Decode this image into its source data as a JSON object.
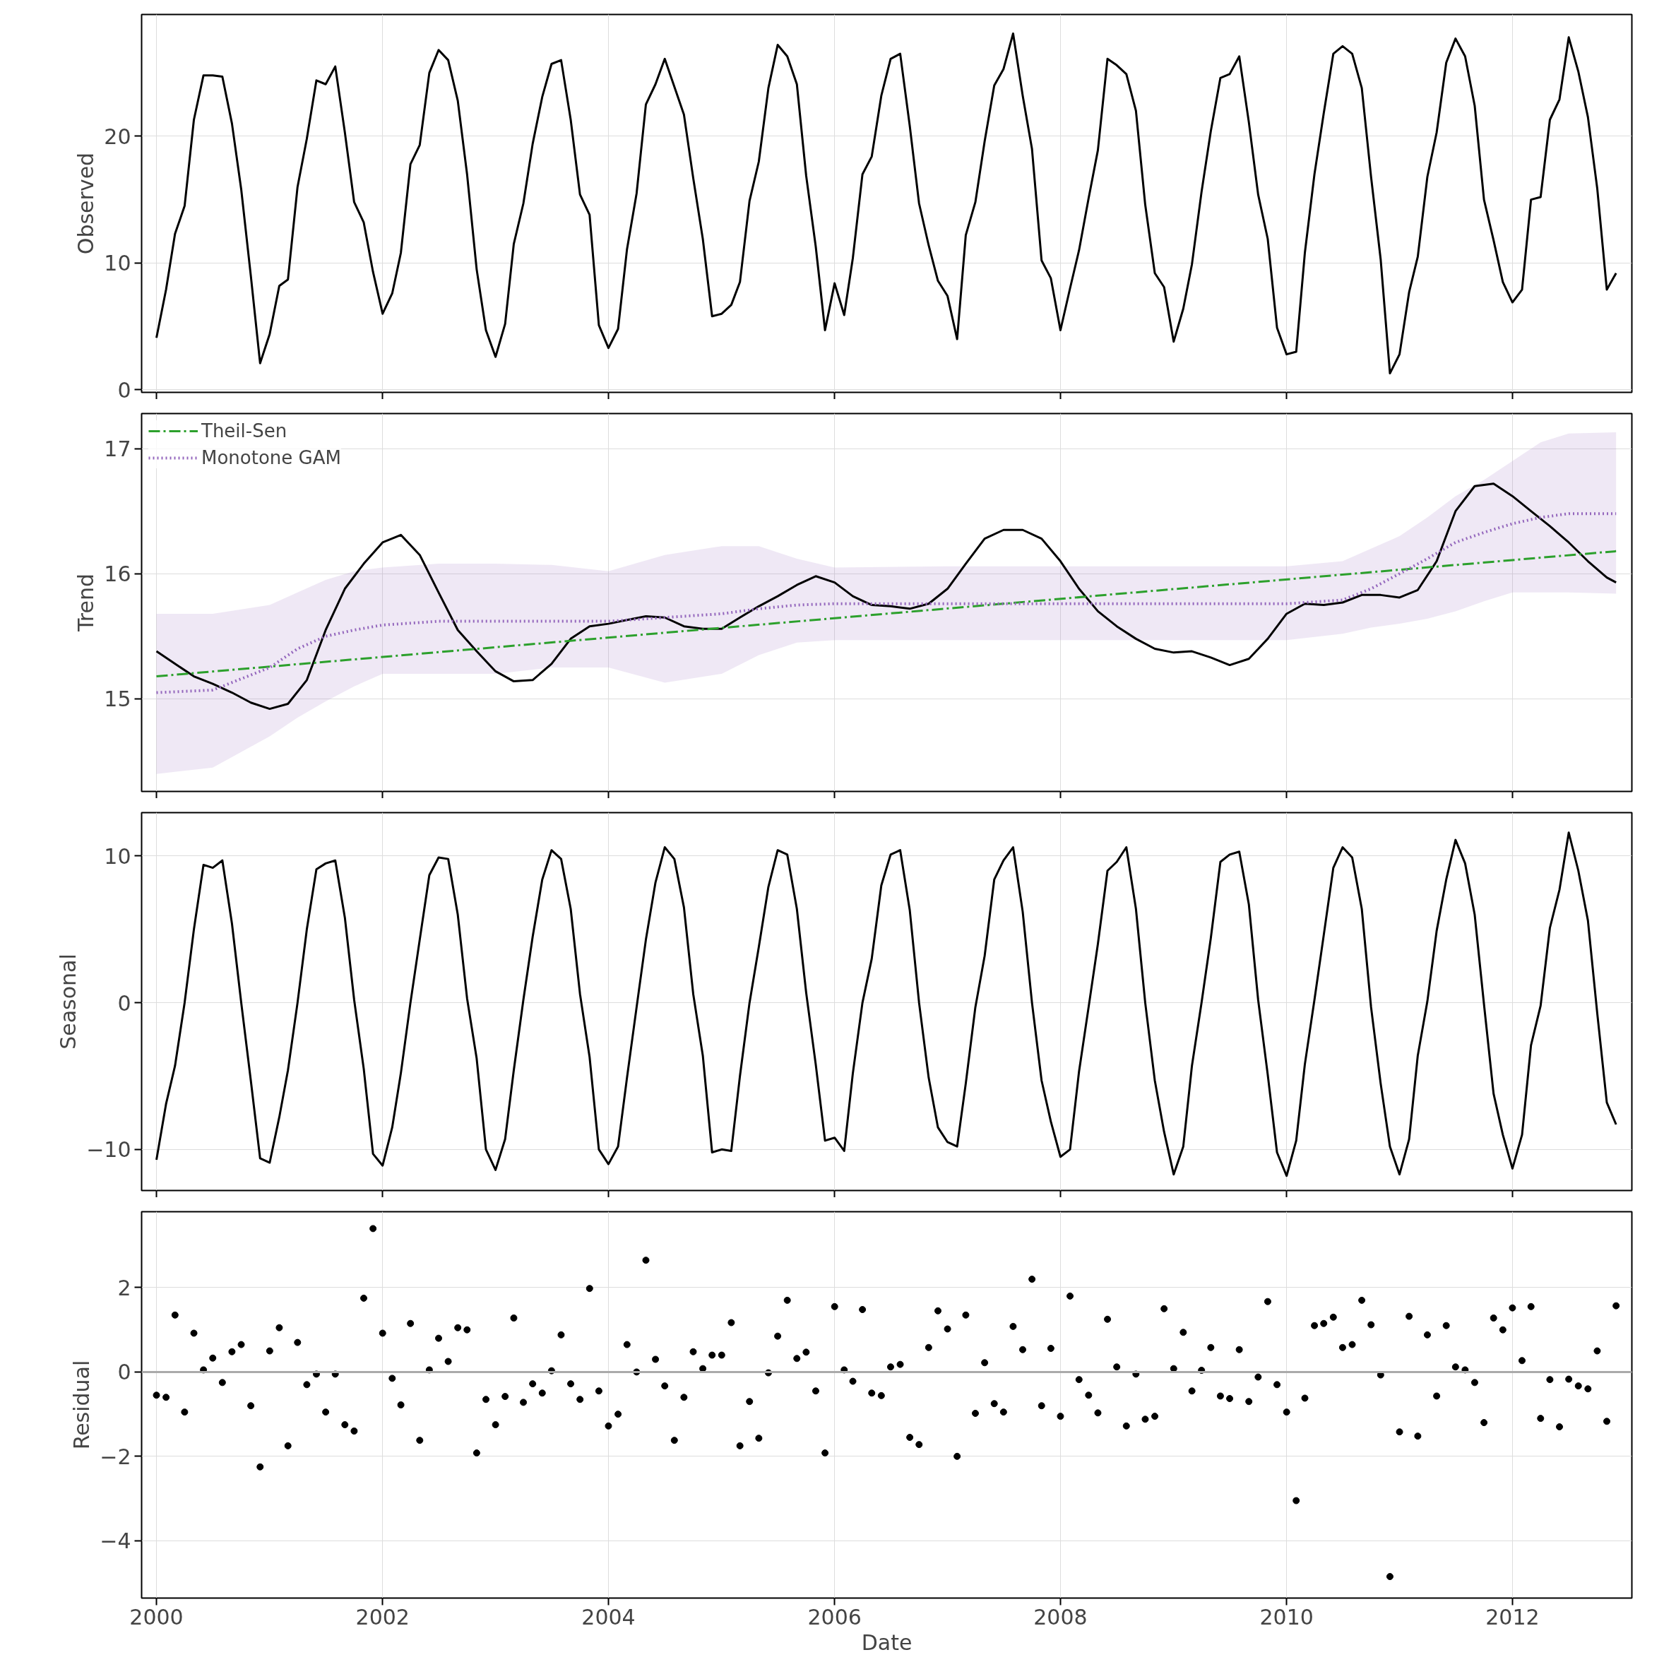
{
  "chart_data": [
    {
      "type": "line",
      "ylabel": "Observed",
      "xlim": [
        "1999-11-14",
        "2013-01-21"
      ],
      "ylim": [
        -0.2,
        29.6
      ],
      "xticks": [
        "2000",
        "2002",
        "2004",
        "2006",
        "2008",
        "2010",
        "2012"
      ],
      "yticks": [
        0,
        10,
        20
      ],
      "grid": true,
      "tick_labels": "y",
      "x": [
        "2000-01",
        "2000-02",
        "2000-03",
        "2000-04",
        "2000-05",
        "2000-06",
        "2000-07",
        "2000-08",
        "2000-09",
        "2000-10",
        "2000-11",
        "2000-12",
        "2001-01",
        "2001-02",
        "2001-03",
        "2001-04",
        "2001-05",
        "2001-06",
        "2001-07",
        "2001-08",
        "2001-09",
        "2001-10",
        "2001-11",
        "2001-12",
        "2002-01",
        "2002-02",
        "2002-03",
        "2002-04",
        "2002-05",
        "2002-06",
        "2002-07",
        "2002-08",
        "2002-09",
        "2002-10",
        "2002-11",
        "2002-12",
        "2003-01",
        "2003-02",
        "2003-03",
        "2003-04",
        "2003-05",
        "2003-06",
        "2003-07",
        "2003-08",
        "2003-09",
        "2003-10",
        "2003-11",
        "2003-12",
        "2004-01",
        "2004-02",
        "2004-03",
        "2004-04",
        "2004-05",
        "2004-06",
        "2004-07",
        "2004-08",
        "2004-09",
        "2004-10",
        "2004-11",
        "2004-12",
        "2005-01",
        "2005-02",
        "2005-03",
        "2005-04",
        "2005-05",
        "2005-06",
        "2005-07",
        "2005-08",
        "2005-09",
        "2005-10",
        "2005-11",
        "2005-12",
        "2006-01",
        "2006-02",
        "2006-03",
        "2006-04",
        "2006-05",
        "2006-06",
        "2006-07",
        "2006-08",
        "2006-09",
        "2006-10",
        "2006-11",
        "2006-12",
        "2007-01",
        "2007-02",
        "2007-03",
        "2007-04",
        "2007-05",
        "2007-06",
        "2007-07",
        "2007-08",
        "2007-09",
        "2007-10",
        "2007-11",
        "2007-12",
        "2008-01",
        "2008-02",
        "2008-03",
        "2008-04",
        "2008-05",
        "2008-06",
        "2008-07",
        "2008-08",
        "2008-09",
        "2008-10",
        "2008-11",
        "2008-12",
        "2009-01",
        "2009-02",
        "2009-03",
        "2009-04",
        "2009-05",
        "2009-06",
        "2009-07",
        "2009-08",
        "2009-09",
        "2009-10",
        "2009-11",
        "2009-12",
        "2010-01",
        "2010-02",
        "2010-03",
        "2010-04",
        "2010-05",
        "2010-06",
        "2010-07",
        "2010-08",
        "2010-09",
        "2010-10",
        "2010-11",
        "2010-12",
        "2011-01",
        "2011-02",
        "2011-03",
        "2011-04",
        "2011-05",
        "2011-06",
        "2011-07",
        "2011-08",
        "2011-09",
        "2011-10",
        "2011-11",
        "2011-12",
        "2012-01",
        "2012-02",
        "2012-03",
        "2012-04",
        "2012-05",
        "2012-06",
        "2012-07",
        "2012-08",
        "2012-09",
        "2012-10",
        "2012-11",
        "2012-12"
      ],
      "series": [
        {
          "color": "#000000",
          "values": [
            4.1,
            7.9,
            12.3,
            14.5,
            21.3,
            24.8,
            24.8,
            24.7,
            21.0,
            15.8,
            9.0,
            2.1,
            4.4,
            8.2,
            8.7,
            16.0,
            19.8,
            24.4,
            24.1,
            25.5,
            20.3,
            14.8,
            13.2,
            9.3,
            6.0,
            7.6,
            10.8,
            17.8,
            19.3,
            25.0,
            26.8,
            26.0,
            22.8,
            17.0,
            9.5,
            4.7,
            2.6,
            5.2,
            11.5,
            14.7,
            19.4,
            23.1,
            25.7,
            26.0,
            21.3,
            15.4,
            13.8,
            5.1,
            3.3,
            4.8,
            11.1,
            15.5,
            22.5,
            24.1,
            26.1,
            23.9,
            21.7,
            16.7,
            11.9,
            5.8,
            6.0,
            6.7,
            8.5,
            14.9,
            18.0,
            23.8,
            27.2,
            26.3,
            24.1,
            16.9,
            11.3,
            4.7,
            8.4,
            5.9,
            10.4,
            17.0,
            18.4,
            23.2,
            26.1,
            26.5,
            20.8,
            14.7,
            11.4,
            8.6,
            7.4,
            4.0,
            12.2,
            14.8,
            19.6,
            24.0,
            25.3,
            28.1,
            23.2,
            19.0,
            10.2,
            8.8,
            4.7,
            8.0,
            11.0,
            15.1,
            18.9,
            26.1,
            25.6,
            24.9,
            22.0,
            14.6,
            9.2,
            8.1,
            3.8,
            6.4,
            9.9,
            15.6,
            20.4,
            24.6,
            24.9,
            26.3,
            21.1,
            15.4,
            11.9,
            4.9,
            2.8,
            3.0,
            10.8,
            17.0,
            21.8,
            26.5,
            27.1,
            26.5,
            23.8,
            16.8,
            10.3,
            1.3,
            2.8,
            7.7,
            10.5,
            16.8,
            20.3,
            25.8,
            27.7,
            26.3,
            22.4,
            15.0,
            11.8,
            8.5,
            6.9,
            7.9,
            15.0,
            15.2,
            21.3,
            22.9,
            27.8,
            25.1,
            21.5,
            15.9,
            7.9,
            9.2
          ]
        }
      ]
    },
    {
      "type": "line",
      "ylabel": "Trend",
      "xlim": [
        "1999-11-14",
        "2013-01-21"
      ],
      "ylim": [
        14.26,
        17.28
      ],
      "xticks": [
        "2000",
        "2002",
        "2004",
        "2006",
        "2008",
        "2010",
        "2012"
      ],
      "yticks": [
        15,
        16,
        17
      ],
      "grid": true,
      "tick_labels": "y",
      "legend": "top left",
      "series": [
        {
          "color": "#000000",
          "x": [
            "2000-01",
            "2000-03",
            "2000-05",
            "2000-07",
            "2000-09",
            "2000-11",
            "2001-01",
            "2001-03",
            "2001-05",
            "2001-07",
            "2001-09",
            "2001-11",
            "2002-01",
            "2002-03",
            "2002-05",
            "2002-07",
            "2002-09",
            "2002-11",
            "2003-01",
            "2003-03",
            "2003-05",
            "2003-07",
            "2003-09",
            "2003-11",
            "2004-01",
            "2004-03",
            "2004-05",
            "2004-07",
            "2004-09",
            "2004-11",
            "2005-01",
            "2005-03",
            "2005-05",
            "2005-07",
            "2005-09",
            "2005-11",
            "2006-01",
            "2006-03",
            "2006-05",
            "2006-07",
            "2006-09",
            "2006-11",
            "2007-01",
            "2007-03",
            "2007-05",
            "2007-07",
            "2007-09",
            "2007-11",
            "2008-01",
            "2008-03",
            "2008-05",
            "2008-07",
            "2008-09",
            "2008-11",
            "2009-01",
            "2009-03",
            "2009-05",
            "2009-07",
            "2009-09",
            "2009-11",
            "2010-01",
            "2010-03",
            "2010-05",
            "2010-07",
            "2010-09",
            "2010-11",
            "2011-01",
            "2011-03",
            "2011-05",
            "2011-07",
            "2011-09",
            "2011-11",
            "2012-01",
            "2012-03",
            "2012-05",
            "2012-07",
            "2012-09",
            "2012-11",
            "2012-12"
          ],
          "values": [
            15.38,
            15.28,
            15.18,
            15.12,
            15.05,
            14.97,
            14.92,
            14.96,
            15.15,
            15.55,
            15.88,
            16.08,
            16.25,
            16.31,
            16.15,
            15.85,
            15.55,
            15.38,
            15.22,
            15.14,
            15.15,
            15.28,
            15.48,
            15.58,
            15.6,
            15.63,
            15.66,
            15.65,
            15.58,
            15.56,
            15.56,
            15.65,
            15.74,
            15.82,
            15.91,
            15.98,
            15.93,
            15.82,
            15.75,
            15.74,
            15.72,
            15.76,
            15.88,
            16.08,
            16.28,
            16.35,
            16.35,
            16.28,
            16.1,
            15.88,
            15.7,
            15.58,
            15.48,
            15.4,
            15.37,
            15.38,
            15.33,
            15.27,
            15.32,
            15.48,
            15.68,
            15.76,
            15.75,
            15.77,
            15.83,
            15.83,
            15.81,
            15.87,
            16.1,
            16.5,
            16.7,
            16.72,
            16.62,
            16.5,
            16.38,
            16.25,
            16.1,
            15.97,
            15.93
          ]
        },
        {
          "name": "Theil-Sen",
          "color": "#2ca02c",
          "line_style": "dashdot",
          "x": [
            "2000-01",
            "2012-12"
          ],
          "values": [
            15.18,
            16.18
          ]
        },
        {
          "name": "Monotone GAM",
          "color": "#9467bd",
          "line_style": "dotted",
          "x": [
            "2000-01",
            "2000-07",
            "2001-01",
            "2001-04",
            "2001-07",
            "2001-10",
            "2002-01",
            "2002-07",
            "2003-01",
            "2003-07",
            "2004-01",
            "2004-07",
            "2005-01",
            "2005-05",
            "2005-09",
            "2006-01",
            "2007-01",
            "2008-01",
            "2009-01",
            "2010-01",
            "2010-07",
            "2010-10",
            "2011-01",
            "2011-04",
            "2011-07",
            "2011-10",
            "2012-01",
            "2012-04",
            "2012-07",
            "2012-12"
          ],
          "values": [
            15.05,
            15.07,
            15.25,
            15.4,
            15.5,
            15.55,
            15.59,
            15.62,
            15.62,
            15.62,
            15.62,
            15.65,
            15.68,
            15.72,
            15.75,
            15.76,
            15.76,
            15.76,
            15.76,
            15.76,
            15.79,
            15.88,
            16.0,
            16.12,
            16.25,
            16.33,
            16.4,
            16.45,
            16.48,
            16.48
          ],
          "lower": [
            14.4,
            14.45,
            14.7,
            14.85,
            14.98,
            15.1,
            15.2,
            15.2,
            15.2,
            15.25,
            15.25,
            15.13,
            15.2,
            15.35,
            15.45,
            15.47,
            15.47,
            15.47,
            15.47,
            15.47,
            15.52,
            15.57,
            15.6,
            15.64,
            15.7,
            15.78,
            15.85,
            15.85,
            15.85,
            15.84
          ],
          "upper": [
            15.68,
            15.68,
            15.75,
            15.85,
            15.95,
            16.02,
            16.05,
            16.08,
            16.08,
            16.07,
            16.02,
            16.15,
            16.22,
            16.22,
            16.12,
            16.05,
            16.06,
            16.06,
            16.06,
            16.06,
            16.1,
            16.2,
            16.3,
            16.45,
            16.62,
            16.75,
            16.9,
            17.05,
            17.12,
            17.13
          ]
        }
      ]
    },
    {
      "type": "line",
      "ylabel": "Seasonal",
      "xlim": [
        "1999-11-14",
        "2013-01-21"
      ],
      "ylim": [
        -12.8,
        12.96
      ],
      "xticks": [
        "2000",
        "2002",
        "2004",
        "2006",
        "2008",
        "2010",
        "2012"
      ],
      "yticks": [
        {
          "value": -10,
          "label": "−10"
        },
        0,
        10
      ],
      "grid": true,
      "tick_labels": "y",
      "x": [
        "2000-01",
        "2000-02",
        "2000-03",
        "2000-04",
        "2000-05",
        "2000-06",
        "2000-07",
        "2000-08",
        "2000-09",
        "2000-10",
        "2000-11",
        "2000-12",
        "2001-01",
        "2001-02",
        "2001-03",
        "2001-04",
        "2001-05",
        "2001-06",
        "2001-07",
        "2001-08",
        "2001-09",
        "2001-10",
        "2001-11",
        "2001-12",
        "2002-01",
        "2002-02",
        "2002-03",
        "2002-04",
        "2002-05",
        "2002-06",
        "2002-07",
        "2002-08",
        "2002-09",
        "2002-10",
        "2002-11",
        "2002-12",
        "2003-01",
        "2003-02",
        "2003-03",
        "2003-04",
        "2003-05",
        "2003-06",
        "2003-07",
        "2003-08",
        "2003-09",
        "2003-10",
        "2003-11",
        "2003-12",
        "2004-01",
        "2004-02",
        "2004-03",
        "2004-04",
        "2004-05",
        "2004-06",
        "2004-07",
        "2004-08",
        "2004-09",
        "2004-10",
        "2004-11",
        "2004-12",
        "2005-01",
        "2005-02",
        "2005-03",
        "2005-04",
        "2005-05",
        "2005-06",
        "2005-07",
        "2005-08",
        "2005-09",
        "2005-10",
        "2005-11",
        "2005-12",
        "2006-01",
        "2006-02",
        "2006-03",
        "2006-04",
        "2006-05",
        "2006-06",
        "2006-07",
        "2006-08",
        "2006-09",
        "2006-10",
        "2006-11",
        "2006-12",
        "2007-01",
        "2007-02",
        "2007-03",
        "2007-04",
        "2007-05",
        "2007-06",
        "2007-07",
        "2007-08",
        "2007-09",
        "2007-10",
        "2007-11",
        "2007-12",
        "2008-01",
        "2008-02",
        "2008-03",
        "2008-04",
        "2008-05",
        "2008-06",
        "2008-07",
        "2008-08",
        "2008-09",
        "2008-10",
        "2008-11",
        "2008-12",
        "2009-01",
        "2009-02",
        "2009-03",
        "2009-04",
        "2009-05",
        "2009-06",
        "2009-07",
        "2009-08",
        "2009-09",
        "2009-10",
        "2009-11",
        "2009-12",
        "2010-01",
        "2010-02",
        "2010-03",
        "2010-04",
        "2010-05",
        "2010-06",
        "2010-07",
        "2010-08",
        "2010-09",
        "2010-10",
        "2010-11",
        "2010-12",
        "2011-01",
        "2011-02",
        "2011-03",
        "2011-04",
        "2011-05",
        "2011-06",
        "2011-07",
        "2011-08",
        "2011-09",
        "2011-10",
        "2011-11",
        "2011-12",
        "2012-01",
        "2012-02",
        "2012-03",
        "2012-04",
        "2012-05",
        "2012-06",
        "2012-07",
        "2012-08",
        "2012-09",
        "2012-10",
        "2012-11",
        "2012-12"
      ],
      "series": [
        {
          "color": "#000000",
          "values": [
            -10.7,
            -6.9,
            -4.3,
            0,
            5.0,
            9.4,
            9.2,
            9.7,
            5.4,
            0,
            -5.3,
            -10.6,
            -10.9,
            -7.8,
            -4.6,
            0,
            5.0,
            9.1,
            9.5,
            9.7,
            5.8,
            0.2,
            -4.5,
            -10.3,
            -11.1,
            -8.5,
            -4.8,
            0,
            4.3,
            8.7,
            9.9,
            9.8,
            6.0,
            0.3,
            -3.8,
            -10.0,
            -11.4,
            -9.3,
            -4.6,
            0.2,
            4.5,
            8.4,
            10.4,
            9.8,
            6.4,
            0.6,
            -3.7,
            -10.0,
            -11.0,
            -9.8,
            -5.1,
            -0.3,
            4.3,
            8.2,
            10.6,
            9.8,
            6.5,
            0.6,
            -3.6,
            -10.2,
            -10.0,
            -10.1,
            -5.0,
            0,
            3.8,
            7.9,
            10.4,
            10.1,
            6.4,
            0.7,
            -4.2,
            -9.4,
            -9.2,
            -10.1,
            -4.8,
            0,
            3.0,
            8.0,
            10.1,
            10.4,
            6.3,
            0,
            -5.1,
            -8.5,
            -9.5,
            -9.8,
            -5.5,
            -0.3,
            3.2,
            8.4,
            9.7,
            10.6,
            6.2,
            0,
            -5.3,
            -8.1,
            -10.5,
            -10.0,
            -4.7,
            -0.3,
            4.0,
            9.0,
            9.6,
            10.6,
            6.4,
            0,
            -5.3,
            -8.8,
            -11.7,
            -9.8,
            -4.3,
            0,
            4.4,
            9.6,
            10.1,
            10.3,
            6.7,
            0.2,
            -4.9,
            -10.2,
            -11.8,
            -9.4,
            -4.2,
            0.2,
            4.6,
            9.2,
            10.6,
            9.9,
            6.4,
            -0.3,
            -5.5,
            -9.8,
            -11.7,
            -9.3,
            -3.6,
            0.1,
            4.9,
            8.4,
            11.1,
            9.5,
            6.0,
            -0.1,
            -6.2,
            -9.0,
            -11.3,
            -9.0,
            -2.9,
            -0.2,
            5.1,
            7.7,
            11.6,
            9.0,
            5.6,
            -0.7,
            -6.8,
            -8.3
          ]
        }
      ]
    },
    {
      "type": "scatter",
      "ylabel": "Residual",
      "xlabel": "Date",
      "xlim": [
        "1999-11-14",
        "2013-01-21"
      ],
      "ylim": [
        -5.36,
        3.8
      ],
      "xticks": [
        "2000",
        "2002",
        "2004",
        "2006",
        "2008",
        "2010",
        "2012"
      ],
      "yticks": [
        {
          "value": -4,
          "label": "−4"
        },
        {
          "value": -2,
          "label": "−2"
        },
        0,
        2
      ],
      "grid": true,
      "marker": "circle",
      "ref_lines": [
        {
          "axis": "y",
          "value": 0,
          "color": "#aaaaaa"
        }
      ],
      "x": [
        "2000-01",
        "2000-02",
        "2000-03",
        "2000-04",
        "2000-05",
        "2000-06",
        "2000-07",
        "2000-08",
        "2000-09",
        "2000-10",
        "2000-11",
        "2000-12",
        "2001-01",
        "2001-02",
        "2001-03",
        "2001-04",
        "2001-05",
        "2001-06",
        "2001-07",
        "2001-08",
        "2001-09",
        "2001-10",
        "2001-11",
        "2001-12",
        "2002-01",
        "2002-02",
        "2002-03",
        "2002-04",
        "2002-05",
        "2002-06",
        "2002-07",
        "2002-08",
        "2002-09",
        "2002-10",
        "2002-11",
        "2002-12",
        "2003-01",
        "2003-02",
        "2003-03",
        "2003-04",
        "2003-05",
        "2003-06",
        "2003-07",
        "2003-08",
        "2003-09",
        "2003-10",
        "2003-11",
        "2003-12",
        "2004-01",
        "2004-02",
        "2004-03",
        "2004-04",
        "2004-05",
        "2004-06",
        "2004-07",
        "2004-08",
        "2004-09",
        "2004-10",
        "2004-11",
        "2004-12",
        "2005-01",
        "2005-02",
        "2005-03",
        "2005-04",
        "2005-05",
        "2005-06",
        "2005-07",
        "2005-08",
        "2005-09",
        "2005-10",
        "2005-11",
        "2005-12",
        "2006-01",
        "2006-02",
        "2006-03",
        "2006-04",
        "2006-05",
        "2006-06",
        "2006-07",
        "2006-08",
        "2006-09",
        "2006-10",
        "2006-11",
        "2006-12",
        "2007-01",
        "2007-02",
        "2007-03",
        "2007-04",
        "2007-05",
        "2007-06",
        "2007-07",
        "2007-08",
        "2007-09",
        "2007-10",
        "2007-11",
        "2007-12",
        "2008-01",
        "2008-02",
        "2008-03",
        "2008-04",
        "2008-05",
        "2008-06",
        "2008-07",
        "2008-08",
        "2008-09",
        "2008-10",
        "2008-11",
        "2008-12",
        "2009-01",
        "2009-02",
        "2009-03",
        "2009-04",
        "2009-05",
        "2009-06",
        "2009-07",
        "2009-08",
        "2009-09",
        "2009-10",
        "2009-11",
        "2009-12",
        "2010-01",
        "2010-02",
        "2010-03",
        "2010-04",
        "2010-05",
        "2010-06",
        "2010-07",
        "2010-08",
        "2010-09",
        "2010-10",
        "2010-11",
        "2010-12",
        "2011-01",
        "2011-02",
        "2011-03",
        "2011-04",
        "2011-05",
        "2011-06",
        "2011-07",
        "2011-08",
        "2011-09",
        "2011-10",
        "2011-11",
        "2011-12",
        "2012-01",
        "2012-02",
        "2012-03",
        "2012-04",
        "2012-05",
        "2012-06",
        "2012-07",
        "2012-08",
        "2012-09",
        "2012-10",
        "2012-11",
        "2012-12"
      ],
      "series": [
        {
          "color": "#000000",
          "values": [
            -0.55,
            -0.6,
            1.35,
            -0.95,
            0.92,
            0.05,
            0.33,
            -0.25,
            0.48,
            0.65,
            -0.8,
            -2.25,
            0.5,
            1.05,
            -1.75,
            0.7,
            -0.3,
            -0.05,
            -0.95,
            -0.05,
            -1.25,
            -1.4,
            1.75,
            3.4,
            0.92,
            -0.15,
            -0.78,
            1.15,
            -1.62,
            0.05,
            0.8,
            0.25,
            1.05,
            1.0,
            -1.92,
            -0.65,
            -1.25,
            -0.58,
            1.28,
            -0.72,
            -0.28,
            -0.5,
            0.03,
            0.88,
            -0.28,
            -0.65,
            1.98,
            -0.45,
            -1.28,
            -1.0,
            0.65,
            0.0,
            2.65,
            0.3,
            -0.33,
            -1.62,
            -0.6,
            0.48,
            0.08,
            0.4,
            0.4,
            1.17,
            -1.75,
            -0.7,
            -1.57,
            -0.02,
            0.85,
            1.7,
            0.32,
            0.47,
            -0.45,
            -1.92,
            1.55,
            0.05,
            -0.22,
            1.48,
            -0.5,
            -0.56,
            0.12,
            0.18,
            -1.55,
            -1.72,
            0.58,
            1.45,
            1.02,
            -2.0,
            1.35,
            -0.98,
            0.22,
            -0.75,
            -0.95,
            1.08,
            0.53,
            2.2,
            -0.8,
            0.56,
            -1.05,
            1.8,
            -0.18,
            -0.55,
            -0.97,
            1.25,
            0.12,
            -1.28,
            -0.05,
            -1.12,
            -1.05,
            1.5,
            0.08,
            0.94,
            -0.45,
            0.04,
            0.58,
            -0.57,
            -0.63,
            0.53,
            -0.7,
            -0.12,
            1.67,
            -0.3,
            -0.95,
            -3.05,
            -0.62,
            1.1,
            1.15,
            1.3,
            0.58,
            0.65,
            1.7,
            1.12,
            -0.07,
            -4.85,
            -1.42,
            1.32,
            -1.52,
            0.88,
            -0.57,
            1.1,
            0.12,
            0.05,
            -0.25,
            -1.2,
            1.28,
            1.0,
            1.52,
            0.27,
            1.55,
            -1.1,
            -0.18,
            -1.3,
            -0.17,
            -0.33,
            -0.4,
            0.5,
            -1.17,
            1.57
          ]
        }
      ]
    }
  ]
}
